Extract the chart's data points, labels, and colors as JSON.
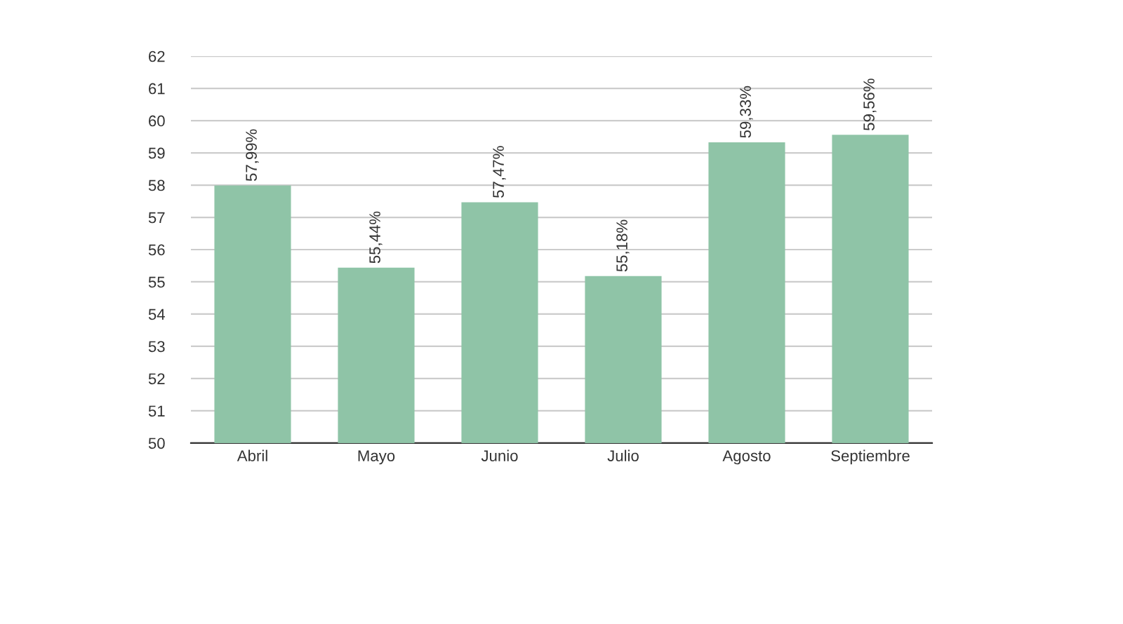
{
  "chart_data": {
    "type": "bar",
    "categories": [
      "Abril",
      "Mayo",
      "Junio",
      "Julio",
      "Agosto",
      "Septiembre"
    ],
    "values": [
      57.99,
      55.44,
      57.47,
      55.18,
      59.33,
      59.56
    ],
    "value_labels": [
      "57,99%",
      "55,44%",
      "57,47%",
      "55,18%",
      "59,33%",
      "59,56%"
    ],
    "color": "#8fc4a7",
    "ylim": [
      50,
      62
    ],
    "yticks": [
      50,
      51,
      52,
      53,
      54,
      55,
      56,
      57,
      58,
      59,
      60,
      61,
      62
    ],
    "grid": "y"
  }
}
